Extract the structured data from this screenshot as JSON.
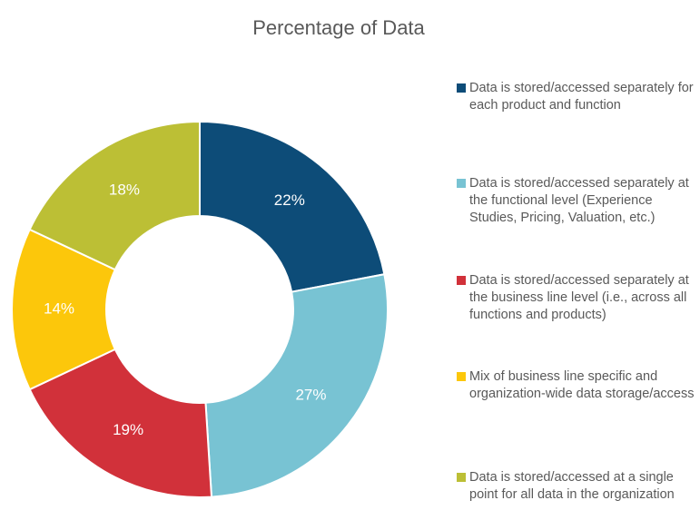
{
  "chart_data": {
    "type": "pie",
    "title": "Percentage of Data",
    "categories": [
      "Data is stored/accessed separately for each product and function",
      "Data is stored/accessed separately at the functional level (Experience Studies, Pricing, Valuation, etc.)",
      "Data is stored/accessed separately at the business line level (i.e., across all functions and products)",
      "Mix of business line specific and organization-wide data storage/access",
      "Data is stored/accessed at a single point for all data in the organization"
    ],
    "values": [
      22,
      27,
      19,
      14,
      18
    ],
    "value_labels": [
      "22%",
      "27%",
      "19%",
      "14%",
      "18%"
    ],
    "colors": [
      "#0d4c78",
      "#78c3d3",
      "#d1313a",
      "#fcc70b",
      "#bcbf35"
    ]
  }
}
